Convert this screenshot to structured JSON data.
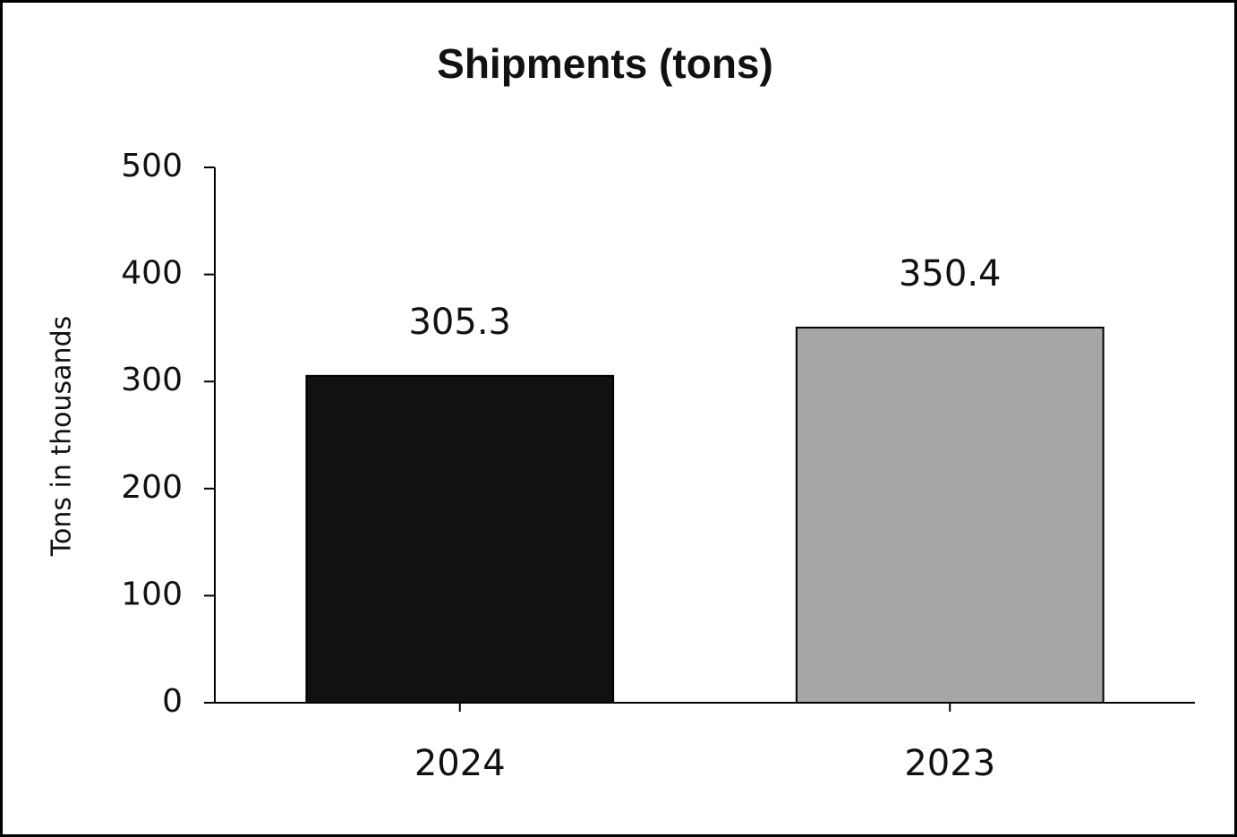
{
  "chart_data": {
    "type": "bar",
    "title": "Shipments (tons)",
    "y_label": "Tons in thousands",
    "categories": [
      "2024",
      "2023"
    ],
    "values": [
      305.3,
      350.4
    ],
    "colors": [
      "#111111",
      "#a6a6a6"
    ],
    "ylim": [
      0,
      500
    ],
    "yticks": [
      0,
      100,
      200,
      300,
      400,
      500
    ],
    "grid": false
  }
}
